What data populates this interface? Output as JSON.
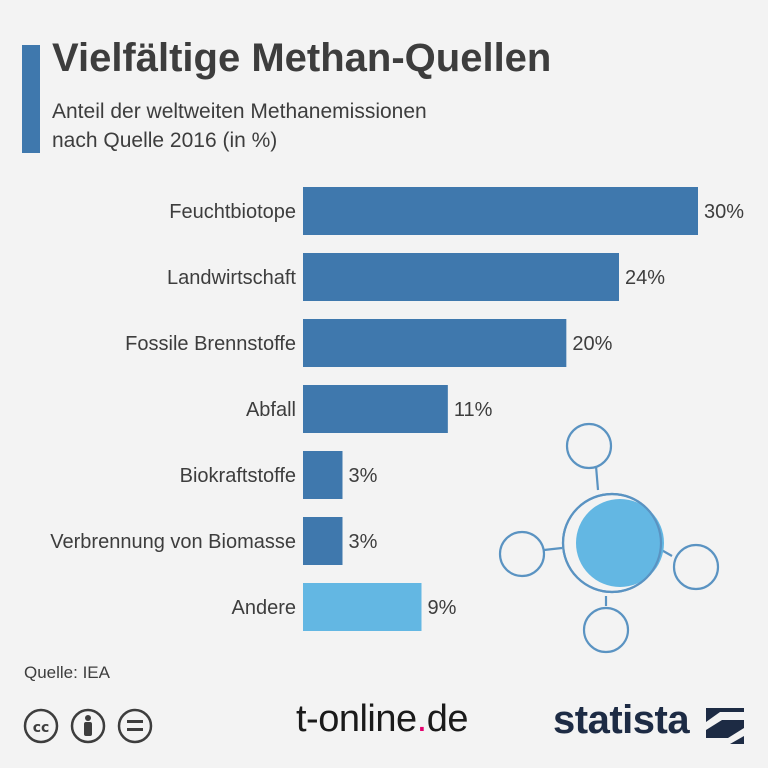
{
  "header": {
    "title": "Vielfältige Methan-Quellen",
    "subtitle_line1": "Anteil der weltweiten Methanemissionen",
    "subtitle_line2": "nach Quelle 2016 (in %)"
  },
  "footer": {
    "source": "Quelle: IEA",
    "brand_tonline_main": "t-online",
    "brand_tonline_dot": ".",
    "brand_tonline_tld": "de",
    "brand_statista": "statista",
    "license_icons": [
      "cc-icon",
      "attribution-icon",
      "no-derivatives-icon"
    ]
  },
  "colors": {
    "bar_primary": "#3f78ad",
    "bar_secondary": "#63b7e3",
    "text": "#3d3d3d",
    "molecule": "#5a93c2",
    "tonline_dot": "#e4006d",
    "statista_navy": "#1d2b44"
  },
  "chart_data": {
    "type": "bar",
    "orientation": "horizontal",
    "title": "Vielfältige Methan-Quellen",
    "subtitle": "Anteil der weltweiten Methanemissionen nach Quelle 2016 (in %)",
    "categories": [
      "Feuchtbiotope",
      "Landwirtschaft",
      "Fossile Brennstoffe",
      "Abfall",
      "Biokraftstoffe",
      "Verbrennung von Biomasse",
      "Andere"
    ],
    "values": [
      30,
      24,
      20,
      11,
      3,
      3,
      9
    ],
    "value_labels": [
      "30%",
      "24%",
      "20%",
      "11%",
      "3%",
      "3%",
      "9%"
    ],
    "highlight": [
      "primary",
      "primary",
      "primary",
      "primary",
      "primary",
      "primary",
      "secondary"
    ],
    "xlim": [
      0,
      30
    ],
    "grid": false,
    "legend": "none"
  }
}
